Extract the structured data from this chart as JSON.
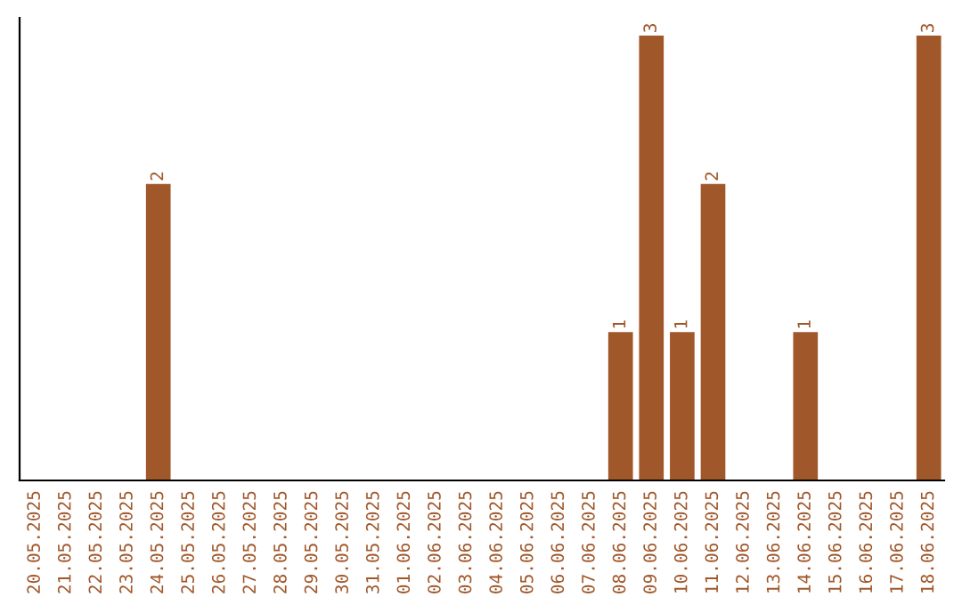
{
  "chart_data": {
    "type": "bar",
    "categories": [
      "20.05.2025",
      "21.05.2025",
      "22.05.2025",
      "23.05.2025",
      "24.05.2025",
      "25.05.2025",
      "26.05.2025",
      "27.05.2025",
      "28.05.2025",
      "29.05.2025",
      "30.05.2025",
      "31.05.2025",
      "01.06.2025",
      "02.06.2025",
      "03.06.2025",
      "04.06.2025",
      "05.06.2025",
      "06.06.2025",
      "07.06.2025",
      "08.06.2025",
      "09.06.2025",
      "10.06.2025",
      "11.06.2025",
      "12.06.2025",
      "13.06.2025",
      "14.06.2025",
      "15.06.2025",
      "16.06.2025",
      "17.06.2025",
      "18.06.2025"
    ],
    "values": [
      0,
      0,
      0,
      0,
      2,
      0,
      0,
      0,
      0,
      0,
      0,
      0,
      0,
      0,
      0,
      0,
      0,
      0,
      0,
      1,
      3,
      1,
      2,
      0,
      0,
      1,
      0,
      0,
      0,
      3
    ],
    "value_labels": [
      null,
      null,
      null,
      null,
      "2",
      null,
      null,
      null,
      null,
      null,
      null,
      null,
      null,
      null,
      null,
      null,
      null,
      null,
      null,
      "1",
      "3",
      "1",
      "2",
      null,
      null,
      "1",
      null,
      null,
      null,
      "3"
    ],
    "color": "#a0572a",
    "grid": false,
    "legend": false
  }
}
